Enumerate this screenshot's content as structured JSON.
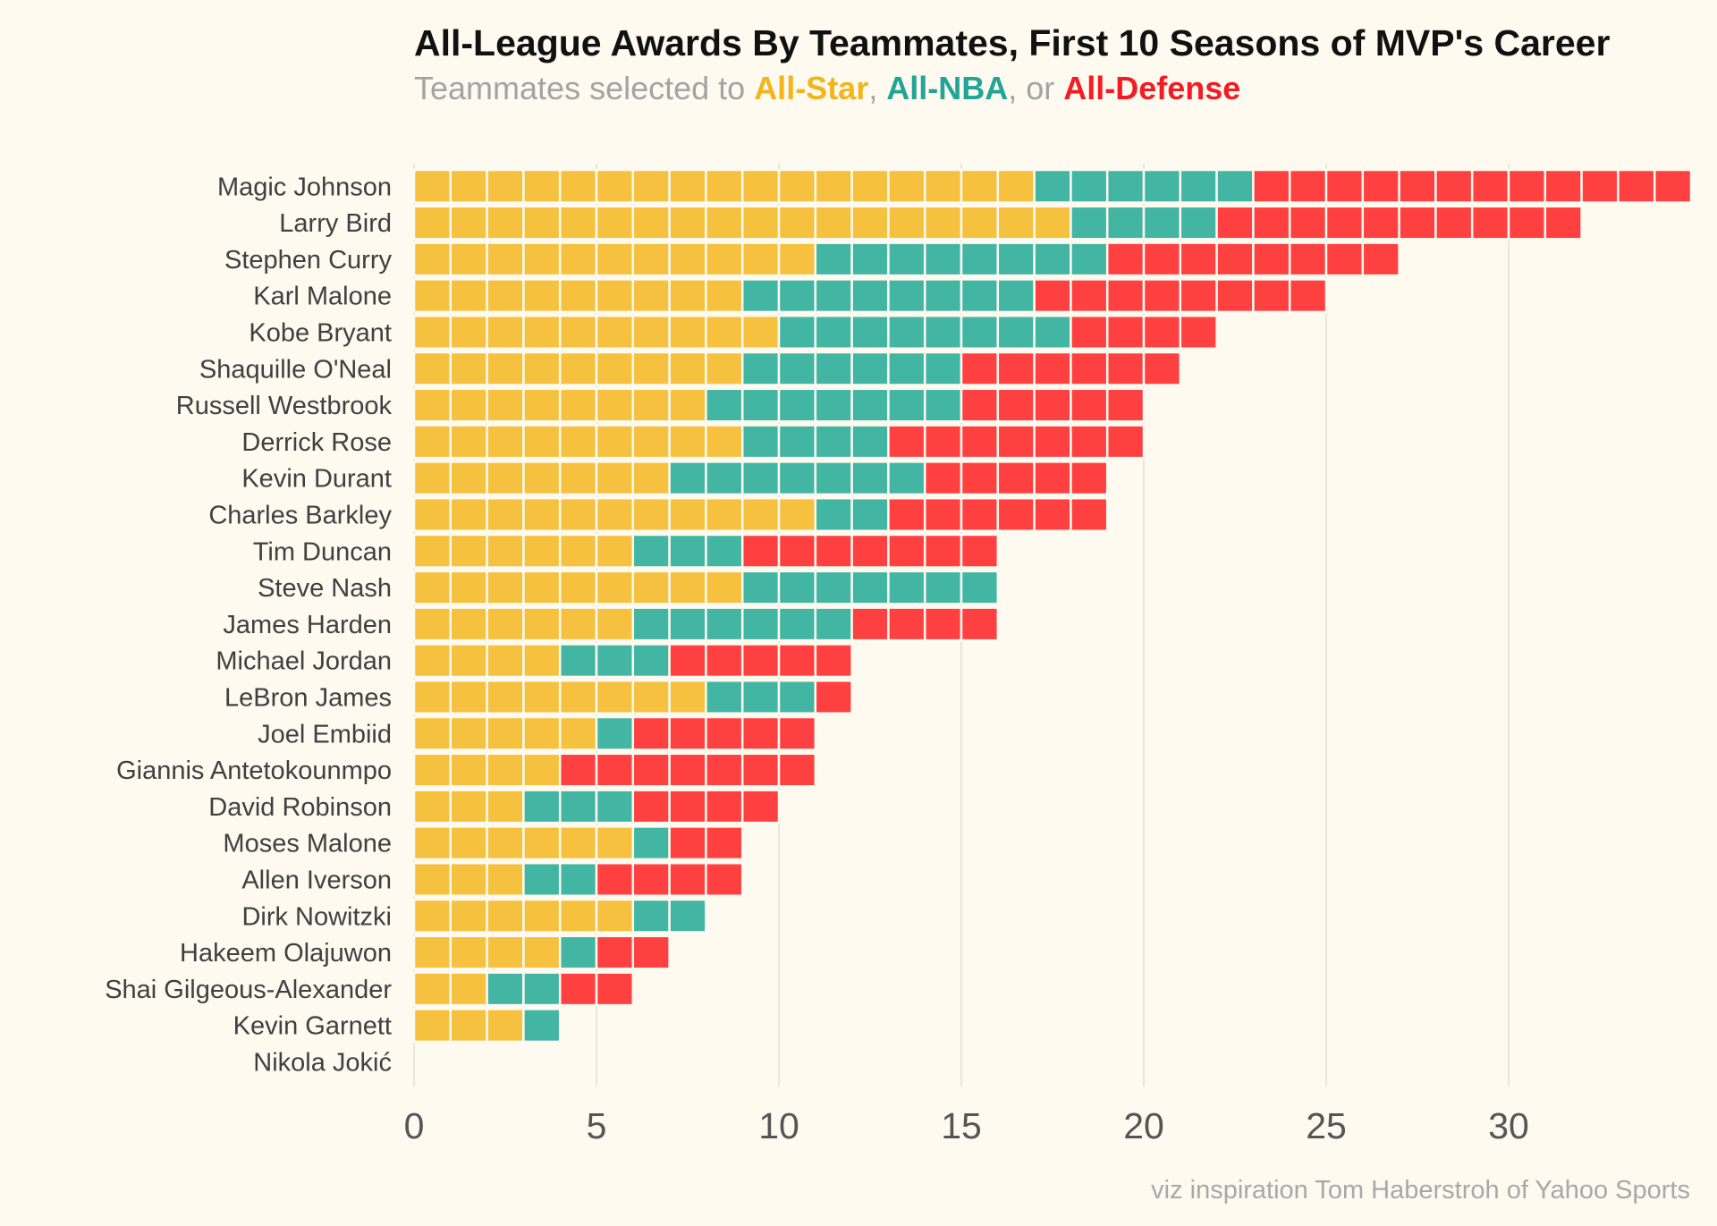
{
  "chart_data": {
    "type": "bar",
    "orientation": "horizontal",
    "stacked": true,
    "title": "All-League Awards By Teammates, First 10 Seasons of MVP's Career",
    "subtitle": {
      "prefix": "Teammates selected to ",
      "sep1": ", ",
      "sep2": ", or ",
      "legend": [
        "All-Star",
        "All-NBA",
        "All-Defense"
      ]
    },
    "caption": "viz inspiration Tom Haberstroh of Yahoo Sports",
    "colors": {
      "All-Star": "#f5c13f",
      "All-NBA": "#42b6a3",
      "All-Defense": "#ff4040",
      "background": "#fefaf0"
    },
    "subtitle_colors": {
      "All-Star": "#f2b51b",
      "All-NBA": "#22a596",
      "All-Defense": "#f21c22"
    },
    "xlim": [
      0,
      35
    ],
    "xticks": [
      0,
      5,
      10,
      15,
      20,
      25,
      30
    ],
    "grid": true,
    "categories": [
      "Magic Johnson",
      "Larry Bird",
      "Stephen Curry",
      "Karl Malone",
      "Kobe Bryant",
      "Shaquille O'Neal",
      "Russell Westbrook",
      "Derrick Rose",
      "Kevin Durant",
      "Charles Barkley",
      "Tim Duncan",
      "Steve Nash",
      "James Harden",
      "Michael Jordan",
      "LeBron James",
      "Joel Embiid",
      "Giannis Antetokounmpo",
      "David Robinson",
      "Moses Malone",
      "Allen Iverson",
      "Dirk Nowitzki",
      "Hakeem Olajuwon",
      "Shai Gilgeous-Alexander",
      "Kevin Garnett",
      "Nikola Jokić"
    ],
    "series": [
      {
        "name": "All-Star",
        "values": [
          17,
          18,
          11,
          9,
          10,
          9,
          8,
          9,
          7,
          11,
          6,
          9,
          6,
          4,
          8,
          5,
          4,
          3,
          6,
          3,
          6,
          4,
          2,
          3,
          0
        ]
      },
      {
        "name": "All-NBA",
        "values": [
          6,
          4,
          8,
          8,
          8,
          6,
          7,
          4,
          7,
          2,
          3,
          7,
          6,
          3,
          3,
          1,
          0,
          3,
          1,
          2,
          2,
          1,
          2,
          1,
          0
        ]
      },
      {
        "name": "All-Defense",
        "values": [
          12,
          10,
          8,
          8,
          4,
          6,
          5,
          7,
          5,
          6,
          7,
          0,
          4,
          5,
          1,
          5,
          7,
          4,
          2,
          4,
          0,
          2,
          2,
          0,
          0
        ]
      }
    ]
  }
}
